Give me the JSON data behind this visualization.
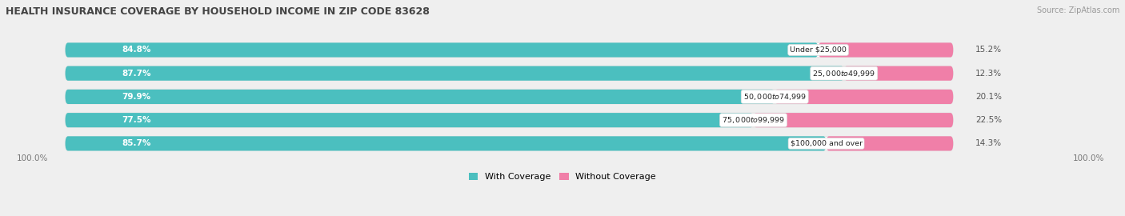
{
  "title": "HEALTH INSURANCE COVERAGE BY HOUSEHOLD INCOME IN ZIP CODE 83628",
  "source": "Source: ZipAtlas.com",
  "categories": [
    "Under $25,000",
    "$25,000 to $49,999",
    "$50,000 to $74,999",
    "$75,000 to $99,999",
    "$100,000 and over"
  ],
  "with_coverage": [
    84.8,
    87.7,
    79.9,
    77.5,
    85.7
  ],
  "without_coverage": [
    15.2,
    12.3,
    20.1,
    22.5,
    14.3
  ],
  "color_with": "#4BBFBF",
  "color_without": "#F07FA8",
  "color_with_light": "#A8DEDE",
  "label_with": "With Coverage",
  "label_without": "Without Coverage",
  "bg_color": "#efefef",
  "bar_bg": "#f8f8f8",
  "bar_height": 0.62,
  "figsize": [
    14.06,
    2.7
  ],
  "dpi": 100,
  "xlim_left": -5,
  "xlim_right": 115,
  "bar_total": 100
}
